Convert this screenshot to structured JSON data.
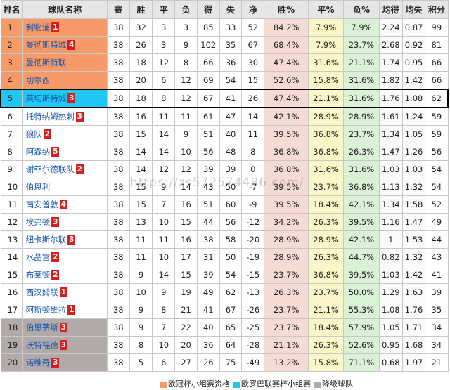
{
  "headers": [
    "排名",
    "球队名称",
    "赛",
    "胜",
    "平",
    "负",
    "得",
    "失",
    "净",
    "胜%",
    "平%",
    "负%",
    "均得",
    "均失",
    "积分"
  ],
  "colors": {
    "ucl": "#f79a68",
    "uel": "#1ec8f2",
    "rel": "#b1aaa8",
    "badge": "#d81e1e",
    "team_text": "#1a56b0"
  },
  "rows": [
    {
      "rank": "1",
      "team": "利物浦",
      "badge": "1",
      "zone": "ucl",
      "p": "38",
      "w": "32",
      "d": "3",
      "l": "3",
      "gf": "85",
      "ga": "33",
      "gd": "52",
      "wp": "84.2%",
      "dp": "7.9%",
      "lp": "7.9%",
      "af": "2.24",
      "aa": "0.87",
      "pts": "99"
    },
    {
      "rank": "2",
      "team": "曼彻斯特城",
      "badge": "4",
      "zone": "ucl",
      "p": "38",
      "w": "26",
      "d": "3",
      "l": "9",
      "gf": "102",
      "ga": "35",
      "gd": "67",
      "wp": "68.4%",
      "dp": "7.9%",
      "lp": "23.7%",
      "af": "2.68",
      "aa": "0.92",
      "pts": "81"
    },
    {
      "rank": "3",
      "team": "曼彻斯特联",
      "badge": "",
      "zone": "ucl",
      "p": "38",
      "w": "18",
      "d": "12",
      "l": "8",
      "gf": "66",
      "ga": "36",
      "gd": "30",
      "wp": "47.4%",
      "dp": "31.6%",
      "lp": "21.1%",
      "af": "1.74",
      "aa": "0.95",
      "pts": "66"
    },
    {
      "rank": "4",
      "team": "切尔西",
      "badge": "",
      "zone": "ucl",
      "p": "38",
      "w": "20",
      "d": "6",
      "l": "12",
      "gf": "69",
      "ga": "54",
      "gd": "15",
      "wp": "52.6%",
      "dp": "15.8%",
      "lp": "31.6%",
      "af": "1.82",
      "aa": "1.42",
      "pts": "66"
    },
    {
      "rank": "5",
      "team": "莱切斯特城",
      "badge": "3",
      "zone": "uel",
      "p": "38",
      "w": "18",
      "d": "8",
      "l": "12",
      "gf": "67",
      "ga": "41",
      "gd": "26",
      "wp": "47.4%",
      "dp": "21.1%",
      "lp": "31.6%",
      "af": "1.76",
      "aa": "1.08",
      "pts": "62"
    },
    {
      "rank": "6",
      "team": "托特纳姆热刺",
      "badge": "3",
      "zone": "",
      "p": "38",
      "w": "16",
      "d": "11",
      "l": "11",
      "gf": "61",
      "ga": "47",
      "gd": "14",
      "wp": "42.1%",
      "dp": "28.9%",
      "lp": "28.9%",
      "af": "1.61",
      "aa": "1.24",
      "pts": "59"
    },
    {
      "rank": "7",
      "team": "狼队",
      "badge": "2",
      "zone": "",
      "p": "38",
      "w": "15",
      "d": "14",
      "l": "9",
      "gf": "51",
      "ga": "40",
      "gd": "11",
      "wp": "39.5%",
      "dp": "36.8%",
      "lp": "23.7%",
      "af": "1.34",
      "aa": "1.05",
      "pts": "59"
    },
    {
      "rank": "8",
      "team": "阿森纳",
      "badge": "5",
      "zone": "",
      "p": "38",
      "w": "14",
      "d": "14",
      "l": "10",
      "gf": "56",
      "ga": "48",
      "gd": "8",
      "wp": "36.8%",
      "dp": "36.8%",
      "lp": "26.3%",
      "af": "1.47",
      "aa": "1.26",
      "pts": "56"
    },
    {
      "rank": "9",
      "team": "谢菲尔德联队",
      "badge": "2",
      "zone": "",
      "p": "38",
      "w": "14",
      "d": "12",
      "l": "12",
      "gf": "39",
      "ga": "39",
      "gd": "0",
      "wp": "36.8%",
      "dp": "31.6%",
      "lp": "31.6%",
      "af": "1.03",
      "aa": "1.03",
      "pts": "54"
    },
    {
      "rank": "10",
      "team": "伯恩利",
      "badge": "",
      "zone": "",
      "p": "38",
      "w": "15",
      "d": "9",
      "l": "14",
      "gf": "43",
      "ga": "50",
      "gd": "-7",
      "wp": "39.5%",
      "dp": "23.7%",
      "lp": "36.8%",
      "af": "1.13",
      "aa": "1.32",
      "pts": "54"
    },
    {
      "rank": "11",
      "team": "南安普敦",
      "badge": "4",
      "zone": "",
      "p": "38",
      "w": "15",
      "d": "7",
      "l": "16",
      "gf": "51",
      "ga": "60",
      "gd": "-9",
      "wp": "39.5%",
      "dp": "18.4%",
      "lp": "42.1%",
      "af": "1.34",
      "aa": "1.58",
      "pts": "52"
    },
    {
      "rank": "12",
      "team": "埃弗顿",
      "badge": "3",
      "zone": "",
      "p": "38",
      "w": "13",
      "d": "10",
      "l": "15",
      "gf": "44",
      "ga": "56",
      "gd": "-12",
      "wp": "34.2%",
      "dp": "26.3%",
      "lp": "39.5%",
      "af": "1.16",
      "aa": "1.47",
      "pts": "49"
    },
    {
      "rank": "13",
      "team": "纽卡斯尔联",
      "badge": "3",
      "zone": "",
      "p": "38",
      "w": "11",
      "d": "11",
      "l": "16",
      "gf": "38",
      "ga": "58",
      "gd": "-20",
      "wp": "28.9%",
      "dp": "28.9%",
      "lp": "42.1%",
      "af": "1",
      "aa": "1.53",
      "pts": "44"
    },
    {
      "rank": "14",
      "team": "水晶宫",
      "badge": "2",
      "zone": "",
      "p": "38",
      "w": "11",
      "d": "10",
      "l": "17",
      "gf": "31",
      "ga": "50",
      "gd": "-19",
      "wp": "28.9%",
      "dp": "26.3%",
      "lp": "44.7%",
      "af": "0.82",
      "aa": "1.32",
      "pts": "43"
    },
    {
      "rank": "15",
      "team": "布莱顿",
      "badge": "2",
      "zone": "",
      "p": "38",
      "w": "9",
      "d": "14",
      "l": "15",
      "gf": "39",
      "ga": "54",
      "gd": "-15",
      "wp": "23.7%",
      "dp": "36.8%",
      "lp": "39.5%",
      "af": "1.03",
      "aa": "1.42",
      "pts": "41"
    },
    {
      "rank": "16",
      "team": "西汉姆联",
      "badge": "1",
      "zone": "",
      "p": "38",
      "w": "10",
      "d": "9",
      "l": "19",
      "gf": "49",
      "ga": "62",
      "gd": "-13",
      "wp": "26.3%",
      "dp": "23.7%",
      "lp": "50.0%",
      "af": "1.29",
      "aa": "1.63",
      "pts": "39"
    },
    {
      "rank": "17",
      "team": "阿斯顿维拉",
      "badge": "1",
      "zone": "",
      "p": "38",
      "w": "9",
      "d": "8",
      "l": "21",
      "gf": "41",
      "ga": "67",
      "gd": "-26",
      "wp": "23.7%",
      "dp": "21.1%",
      "lp": "55.3%",
      "af": "1.08",
      "aa": "1.76",
      "pts": "35"
    },
    {
      "rank": "18",
      "team": "伯恩茅斯",
      "badge": "3",
      "zone": "rel",
      "p": "38",
      "w": "9",
      "d": "7",
      "l": "22",
      "gf": "40",
      "ga": "65",
      "gd": "-25",
      "wp": "23.7%",
      "dp": "18.4%",
      "lp": "57.9%",
      "af": "1.05",
      "aa": "1.71",
      "pts": "34"
    },
    {
      "rank": "19",
      "team": "沃特福德",
      "badge": "3",
      "zone": "rel",
      "p": "38",
      "w": "8",
      "d": "10",
      "l": "20",
      "gf": "36",
      "ga": "64",
      "gd": "-28",
      "wp": "21.1%",
      "dp": "26.3%",
      "lp": "52.6%",
      "af": "0.95",
      "aa": "1.68",
      "pts": "34"
    },
    {
      "rank": "20",
      "team": "诺维奇",
      "badge": "3",
      "zone": "rel",
      "p": "38",
      "w": "5",
      "d": "6",
      "l": "27",
      "gf": "26",
      "ga": "75",
      "gd": "-49",
      "wp": "13.2%",
      "dp": "15.8%",
      "lp": "71.1%",
      "af": "0.68",
      "aa": "1.97",
      "pts": "21"
    }
  ],
  "highlight_rank": "5",
  "legend": [
    {
      "label": "欧冠杯小组赛资格",
      "color": "#f79a68"
    },
    {
      "label": "欧罗巴联赛杯小组赛",
      "color": "#1ec8f2"
    },
    {
      "label": "降级球队",
      "color": "#b1aaa8"
    }
  ],
  "watermark": "https://zs572574486.com/"
}
